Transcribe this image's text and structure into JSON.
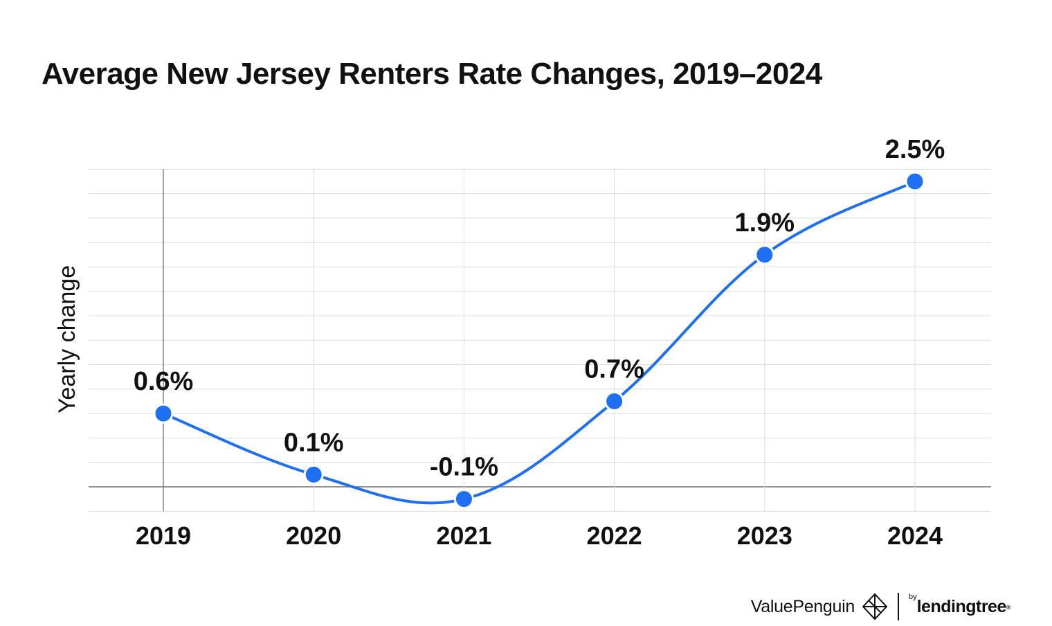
{
  "title": "Average New Jersey Renters Rate Changes, 2019–2024",
  "chart_data": {
    "type": "line",
    "title": "Average New Jersey Renters Rate Changes, 2019–2024",
    "xlabel": "",
    "ylabel": "Yearly change",
    "categories": [
      "2019",
      "2020",
      "2021",
      "2022",
      "2023",
      "2024"
    ],
    "series": [
      {
        "values": [
          0.6,
          0.1,
          -0.1,
          0.7,
          1.9,
          2.5
        ],
        "labels": [
          "0.6%",
          "0.1%",
          "-0.1%",
          "0.7%",
          "1.9%",
          "2.5%"
        ],
        "color": "#1f6ff2"
      }
    ],
    "ylim": [
      -0.2,
      2.6
    ],
    "grid": true,
    "legend": "none"
  },
  "branding": {
    "brand_name": "ValuePenguin",
    "partner_prefix": "by",
    "partner_name": "lendingtree",
    "partner_mark": "®",
    "icon": "valuepenguin-logo-icon"
  }
}
